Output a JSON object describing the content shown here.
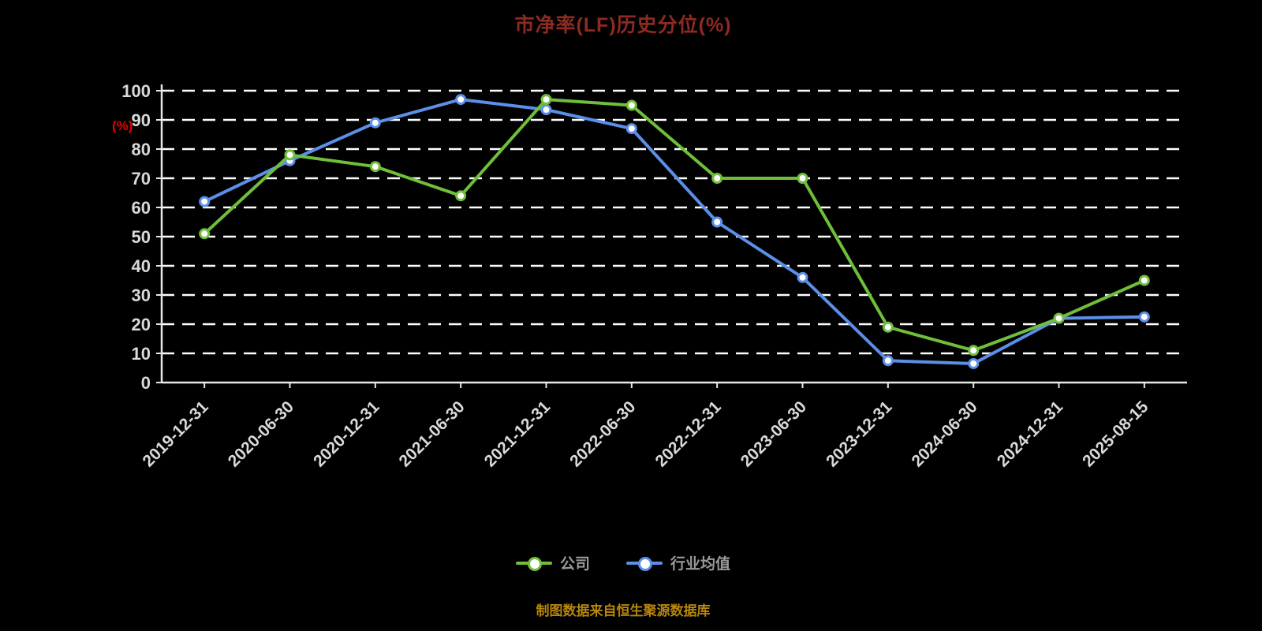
{
  "title": "市净率(LF)历史分位(%)",
  "y_unit_label": "(%)",
  "footer_note": "制图数据来自恒生聚源数据库",
  "chart_data": {
    "type": "line",
    "title": "市净率(LF)历史分位(%)",
    "ylabel": "(%)",
    "ylim": [
      0,
      100
    ],
    "yticks": [
      0,
      10,
      20,
      30,
      40,
      50,
      60,
      70,
      80,
      90,
      100
    ],
    "grid": "dashed-horizontal",
    "legend_position": "bottom-center",
    "categories": [
      "2019-12-31",
      "2020-06-30",
      "2020-12-31",
      "2021-06-30",
      "2021-12-31",
      "2022-06-30",
      "2022-12-31",
      "2023-06-30",
      "2023-12-31",
      "2024-06-30",
      "2024-12-31",
      "2025-08-15"
    ],
    "series": [
      {
        "name": "公司",
        "color": "#6fbf3a",
        "values": [
          51,
          78,
          74,
          64,
          97,
          95,
          70,
          70,
          19,
          11,
          22,
          35
        ]
      },
      {
        "name": "行业均值",
        "color": "#5b8fe8",
        "values": [
          62,
          76,
          89,
          97,
          93.5,
          87,
          55,
          36,
          7.5,
          6.5,
          22,
          22.5
        ]
      }
    ],
    "colors": {
      "background": "#000000",
      "gridline": "#ffffff",
      "axis": "#e8e8e8",
      "tick_label": "#d9d9d9",
      "title": "#8e2a22",
      "unit_label": "#e60000",
      "footer": "#b8860b",
      "legend_text": "#9a9a9a"
    }
  }
}
